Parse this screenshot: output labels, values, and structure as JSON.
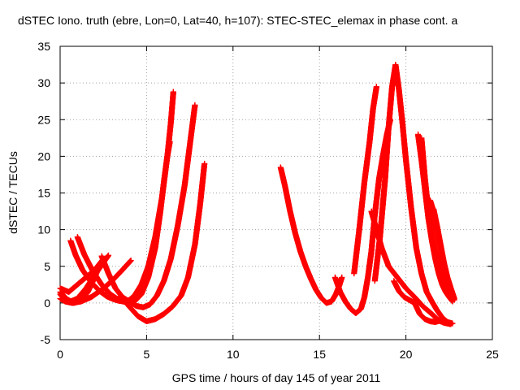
{
  "chart_data": {
    "type": "scatter",
    "title": "dSTEC Iono. truth (ebre, Lon=0, Lat=40, h=107): STEC-STEC_elemax in phase cont. a",
    "xlabel": "GPS time / hours of day 145 of year 2011",
    "ylabel": "dSTEC  / TECUs",
    "xlim": [
      0,
      25
    ],
    "ylim": [
      -5,
      35
    ],
    "x_ticks": [
      0,
      5,
      10,
      15,
      20,
      25
    ],
    "y_ticks": [
      -5,
      0,
      5,
      10,
      15,
      20,
      25,
      30,
      35
    ],
    "grid": true,
    "marker": "plus",
    "color": "#ff0000",
    "series": [
      {
        "x": [
          0.0,
          0.3,
          0.6,
          1.0,
          1.5,
          2.0,
          2.5,
          2.8
        ],
        "y": [
          1.2,
          0.4,
          0.2,
          0.6,
          2.0,
          3.8,
          5.5,
          6.5
        ]
      },
      {
        "x": [
          0.0,
          0.3,
          0.7,
          1.2,
          1.8,
          2.4,
          3.0,
          3.6,
          4.1
        ],
        "y": [
          0.6,
          0.2,
          0.0,
          0.2,
          0.8,
          1.8,
          3.0,
          4.5,
          5.8
        ]
      },
      {
        "x": [
          0.0,
          0.4,
          0.8,
          1.2,
          1.6,
          2.0,
          2.3
        ],
        "y": [
          1.5,
          0.5,
          0.0,
          0.3,
          1.5,
          3.5,
          5.2
        ]
      },
      {
        "x": [
          0.0,
          0.5,
          1.0,
          1.5,
          2.0,
          2.5
        ],
        "y": [
          2.0,
          1.5,
          2.5,
          3.5,
          4.5,
          6.0
        ]
      },
      {
        "x": [
          0.6,
          0.9,
          1.3,
          1.8,
          2.3,
          2.7,
          3.1,
          3.4,
          3.7,
          4.0,
          4.3,
          4.7,
          5.1,
          5.5,
          5.9,
          6.2,
          6.4,
          6.55
        ],
        "y": [
          8.5,
          6.5,
          4.5,
          2.8,
          1.6,
          0.9,
          0.5,
          0.3,
          0.2,
          0.4,
          1.0,
          2.5,
          5.0,
          9.0,
          14.5,
          20.0,
          24.5,
          28.8
        ]
      },
      {
        "x": [
          1.0,
          1.4,
          1.9,
          2.4,
          2.9,
          3.4,
          3.9,
          4.3,
          4.7,
          5.1,
          5.5,
          5.8,
          6.0,
          6.2,
          6.35
        ],
        "y": [
          9.0,
          6.6,
          4.3,
          2.5,
          1.2,
          0.4,
          0.0,
          0.2,
          1.2,
          3.5,
          7.5,
          12.5,
          16.5,
          20.0,
          22.0
        ]
      },
      {
        "x": [
          2.4,
          2.8,
          3.2,
          3.6,
          4.0,
          4.4,
          4.8,
          5.2,
          5.6,
          6.0,
          6.4,
          6.8,
          7.2,
          7.5,
          7.8
        ],
        "y": [
          6.4,
          4.0,
          2.0,
          0.8,
          0.2,
          -0.4,
          -0.6,
          -0.2,
          1.0,
          3.0,
          6.0,
          10.5,
          16.0,
          21.5,
          27.0
        ]
      },
      {
        "x": [
          3.5,
          4.0,
          4.5,
          5.0,
          5.5,
          6.0,
          6.5,
          7.0,
          7.4,
          7.8,
          8.1,
          8.35
        ],
        "y": [
          1.0,
          -0.5,
          -1.8,
          -2.5,
          -2.2,
          -1.5,
          -0.5,
          1.0,
          3.5,
          8.0,
          13.5,
          19.0
        ]
      },
      {
        "x": [
          12.75,
          13.0,
          13.3,
          13.6,
          13.9,
          14.2,
          14.5,
          14.8,
          15.1,
          15.4,
          15.7,
          15.95,
          16.15,
          16.3
        ],
        "y": [
          18.5,
          16.0,
          12.5,
          9.5,
          7.0,
          5.0,
          3.3,
          1.8,
          0.7,
          0.0,
          0.2,
          1.2,
          2.4,
          3.5
        ]
      },
      {
        "x": [
          15.9,
          16.2,
          16.5,
          16.8,
          17.1,
          17.4,
          17.6,
          17.8,
          18.0,
          18.2,
          18.45,
          18.7,
          18.9,
          19.1
        ],
        "y": [
          3.5,
          1.5,
          0.2,
          -0.8,
          -1.4,
          -0.8,
          0.8,
          3.5,
          7.0,
          12.0,
          17.0,
          20.5,
          23.0,
          25.0
        ]
      },
      {
        "x": [
          17.0,
          17.3,
          17.6,
          17.9,
          18.1,
          18.3
        ],
        "y": [
          4.0,
          10.0,
          16.5,
          22.0,
          26.5,
          29.5
        ]
      },
      {
        "x": [
          18.0,
          18.3,
          18.6,
          19.0,
          19.5,
          20.0,
          20.5,
          21.0,
          21.5,
          21.9,
          22.2,
          22.4,
          22.6
        ],
        "y": [
          12.5,
          10.0,
          7.5,
          5.0,
          3.5,
          2.0,
          0.8,
          -0.5,
          -1.5,
          -2.4,
          -2.7,
          -2.8,
          -2.9
        ]
      },
      {
        "x": [
          18.2,
          18.5,
          18.8,
          19.0,
          19.2,
          19.4,
          19.6,
          19.8,
          20.0,
          20.3,
          20.6,
          20.9,
          21.2,
          21.5,
          21.8,
          22.1,
          22.4,
          22.7
        ],
        "y": [
          3.0,
          9.0,
          17.0,
          24.0,
          29.5,
          32.5,
          29.0,
          24.5,
          19.5,
          13.0,
          7.5,
          4.0,
          1.5,
          0.2,
          -1.0,
          -2.0,
          -2.6,
          -2.8
        ]
      },
      {
        "x": [
          19.3,
          19.6,
          19.9,
          20.2,
          20.5,
          20.8,
          21.1,
          21.4,
          21.7,
          22.0,
          22.2
        ],
        "y": [
          3.0,
          1.6,
          0.8,
          0.4,
          0.0,
          -1.5,
          -2.2,
          -2.5,
          -2.6,
          -2.4,
          -2.2
        ]
      },
      {
        "x": [
          20.7,
          20.9,
          21.1,
          21.3,
          21.5,
          21.7,
          21.9,
          22.1,
          22.3,
          22.5,
          22.7
        ],
        "y": [
          23.0,
          19.5,
          15.5,
          11.5,
          8.5,
          6.0,
          4.0,
          2.5,
          1.5,
          0.8,
          0.2
        ]
      },
      {
        "x": [
          20.9,
          21.1,
          21.3,
          21.5,
          21.7,
          21.9,
          22.1,
          22.3,
          22.5,
          22.7
        ],
        "y": [
          22.5,
          17.0,
          12.5,
          9.5,
          7.0,
          5.0,
          3.5,
          2.2,
          1.2,
          0.4
        ]
      },
      {
        "x": [
          21.4,
          21.6,
          21.8,
          22.0,
          22.2,
          22.4,
          22.6,
          22.8
        ],
        "y": [
          14.0,
          12.5,
          10.0,
          7.5,
          5.0,
          3.0,
          1.6,
          0.4
        ]
      },
      {
        "x": [
          21.6,
          21.8,
          22.0,
          22.2,
          22.4,
          22.6,
          22.8
        ],
        "y": [
          12.8,
          10.5,
          8.0,
          5.5,
          3.5,
          2.0,
          0.6
        ]
      }
    ]
  }
}
